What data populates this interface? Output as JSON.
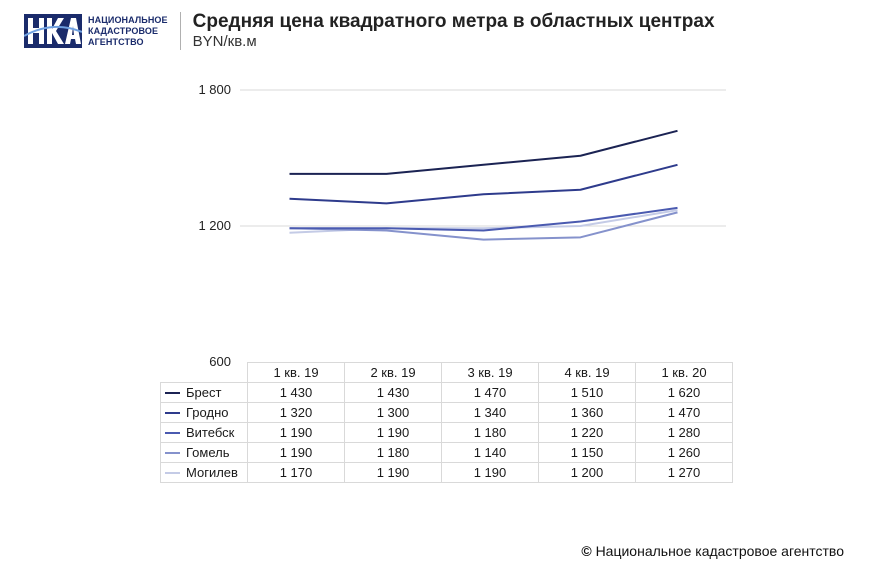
{
  "header": {
    "logo_lines": [
      "НАЦИОНАЛЬНОЕ",
      "КАДАСТРОВОЕ",
      "АГЕНТСТВО"
    ],
    "title": "Средняя цена квадратного метра в областных центрах",
    "subtitle": "BYN/кв.м"
  },
  "chart_data": {
    "type": "line",
    "categories": [
      "1 кв. 19",
      "2 кв. 19",
      "3 кв. 19",
      "4 кв. 19",
      "1 кв. 20"
    ],
    "series": [
      {
        "name": "Брест",
        "color": "#1b2353",
        "values": [
          1430,
          1430,
          1470,
          1510,
          1620
        ]
      },
      {
        "name": "Гродно",
        "color": "#2e3b8c",
        "values": [
          1320,
          1300,
          1340,
          1360,
          1470
        ]
      },
      {
        "name": "Витебск",
        "color": "#4a5ab0",
        "values": [
          1190,
          1190,
          1180,
          1220,
          1280
        ]
      },
      {
        "name": "Гомель",
        "color": "#8592cc",
        "values": [
          1190,
          1180,
          1140,
          1150,
          1260
        ]
      },
      {
        "name": "Могилев",
        "color": "#c4cbe6",
        "values": [
          1170,
          1190,
          1190,
          1200,
          1270
        ]
      }
    ],
    "ylim": [
      600,
      1800
    ],
    "yticks": [
      600,
      1200,
      1800
    ],
    "ytick_labels": [
      "600",
      "1 200",
      "1 800"
    ],
    "grid": true,
    "legend": "data-table",
    "table_values": [
      [
        "1 430",
        "1 430",
        "1 470",
        "1 510",
        "1 620"
      ],
      [
        "1 320",
        "1 300",
        "1 340",
        "1 360",
        "1 470"
      ],
      [
        "1 190",
        "1 190",
        "1 180",
        "1 220",
        "1 280"
      ],
      [
        "1 190",
        "1 180",
        "1 140",
        "1 150",
        "1 260"
      ],
      [
        "1 170",
        "1 190",
        "1 190",
        "1 200",
        "1 270"
      ]
    ]
  },
  "footer": {
    "copyright_symbol": "©",
    "text": "Национальное кадастровое агентство"
  }
}
